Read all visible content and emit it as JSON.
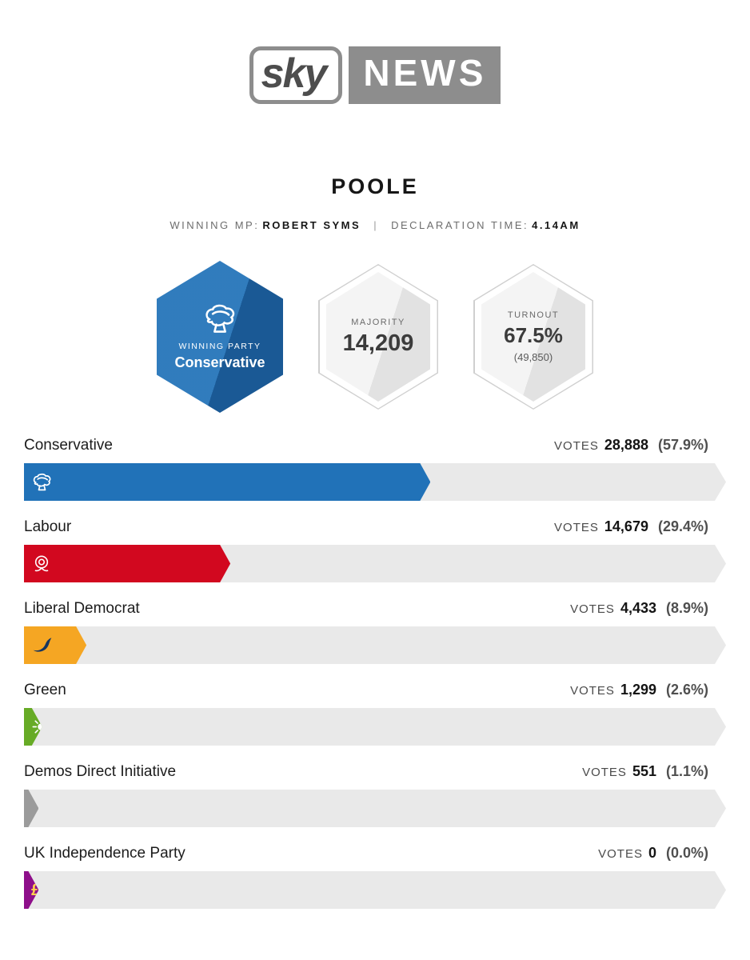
{
  "logo": {
    "sky": "sky",
    "news": "NEWS"
  },
  "header": {
    "constituency": "POOLE",
    "winning_mp_label": "WINNING MP:",
    "winning_mp": "ROBERT SYMS",
    "separator": "|",
    "declaration_label": "DECLARATION TIME:",
    "declaration_time": "4.14AM"
  },
  "hexagons": {
    "winning_party": {
      "label": "WINNING PARTY",
      "value": "Conservative",
      "color": "#2172b8",
      "icon": "conservative-tree-icon"
    },
    "majority": {
      "label": "MAJORITY",
      "value": "14,209"
    },
    "turnout": {
      "label": "TURNOUT",
      "value": "67.5%",
      "electorate": "(49,850)"
    }
  },
  "results": {
    "votes_label": "VOTES",
    "parties": [
      {
        "name": "Conservative",
        "votes": "28,888",
        "percent": "(57.9%)",
        "pct": 57.9,
        "color": "#2172b8",
        "icon": "conservative-tree-icon"
      },
      {
        "name": "Labour",
        "votes": "14,679",
        "percent": "(29.4%)",
        "pct": 29.4,
        "color": "#d2081f",
        "icon": "labour-rose-icon"
      },
      {
        "name": "Liberal Democrat",
        "votes": "4,433",
        "percent": "(8.9%)",
        "pct": 8.9,
        "color": "#f5a623",
        "icon": "libdem-bird-icon"
      },
      {
        "name": "Green",
        "votes": "1,299",
        "percent": "(2.6%)",
        "pct": 2.6,
        "color": "#67ab26",
        "icon": "green-flower-icon"
      },
      {
        "name": "Demos Direct Initiative",
        "votes": "551",
        "percent": "(1.1%)",
        "pct": 1.1,
        "color": "#9b9b9b",
        "icon": null
      },
      {
        "name": "UK Independence Party",
        "votes": "0",
        "percent": "(0.0%)",
        "pct": 0.0,
        "color": "#8e0f8a",
        "icon": "ukip-pound-icon"
      }
    ]
  },
  "chart_data": {
    "type": "bar",
    "title": "POOLE",
    "categories": [
      "Conservative",
      "Labour",
      "Liberal Democrat",
      "Green",
      "Demos Direct Initiative",
      "UK Independence Party"
    ],
    "values": [
      28888,
      14679,
      4433,
      1299,
      551,
      0
    ],
    "percentages": [
      57.9,
      29.4,
      8.9,
      2.6,
      1.1,
      0.0
    ],
    "series_colors": [
      "#2172b8",
      "#d2081f",
      "#f5a623",
      "#67ab26",
      "#9b9b9b",
      "#8e0f8a"
    ],
    "winning_party": "Conservative",
    "winning_mp": "Robert Syms",
    "declaration_time": "4.14AM",
    "majority": 14209,
    "turnout_percent": 67.5,
    "turnout_count": 49850,
    "xlabel": "",
    "ylabel": "Votes",
    "xlim": [
      0,
      100
    ]
  }
}
